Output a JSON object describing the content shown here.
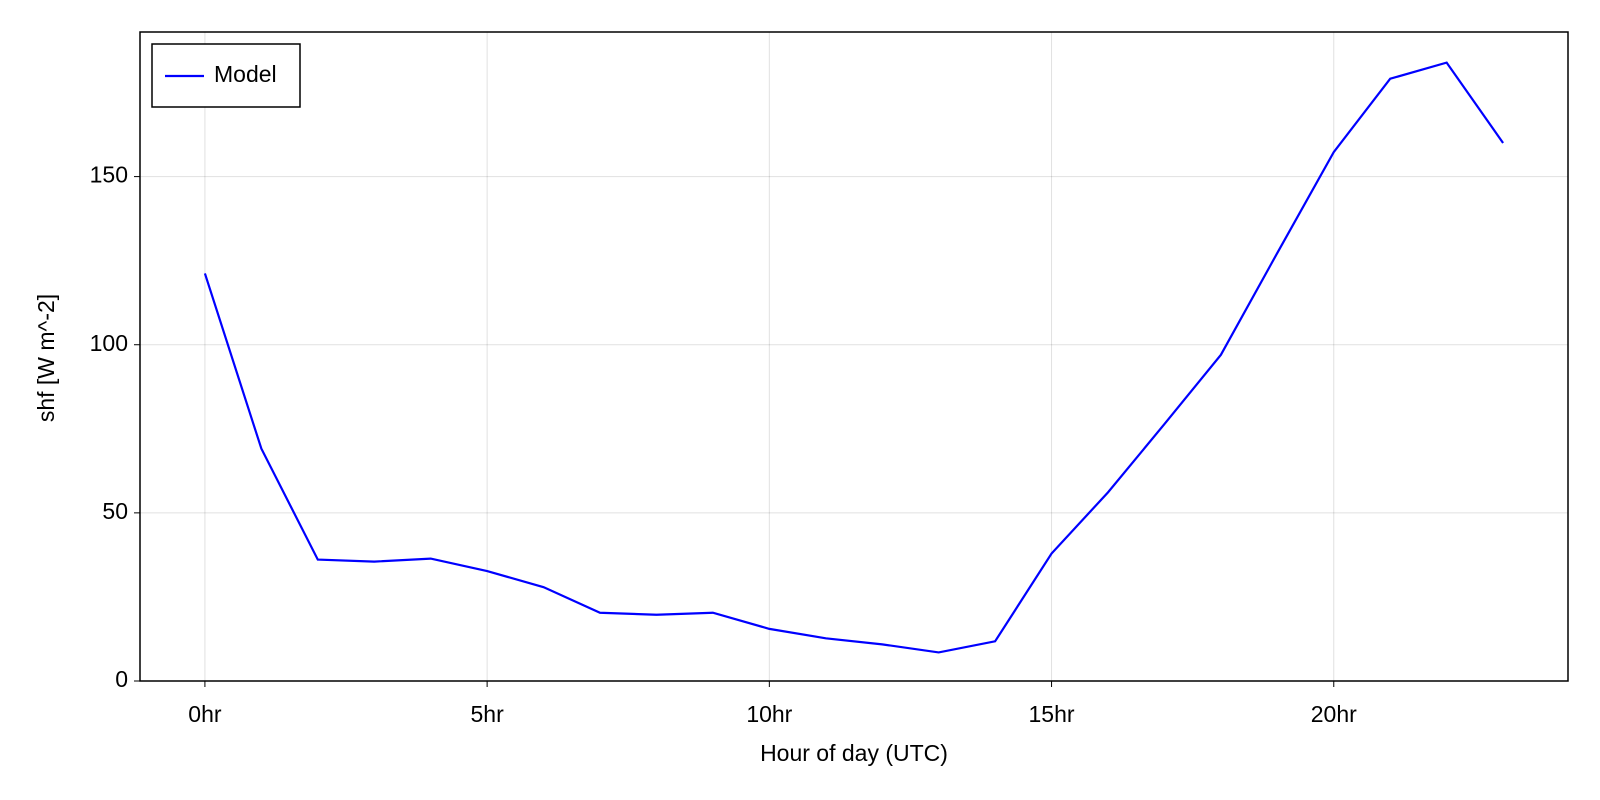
{
  "chart_data": {
    "type": "line",
    "xlabel": "Hour of day (UTC)",
    "ylabel": "shf [W m^-2]",
    "x": [
      0,
      1,
      2,
      3,
      4,
      5,
      6,
      7,
      8,
      9,
      10,
      11,
      12,
      13,
      14,
      15,
      16,
      17,
      18,
      19,
      20,
      21,
      22,
      23
    ],
    "series": [
      {
        "name": "Model",
        "color": "#0000ff",
        "values": [
          121.2,
          69.1,
          36.1,
          35.5,
          36.4,
          32.7,
          27.9,
          20.3,
          19.7,
          20.3,
          15.5,
          12.7,
          10.9,
          8.5,
          11.8,
          37.9,
          56.1,
          76.4,
          97.0,
          127.3,
          157.3,
          179.1,
          183.9,
          160.0
        ]
      }
    ],
    "xlim": [
      -1.15,
      24.15
    ],
    "ylim": [
      0,
      193
    ],
    "xticks": [
      {
        "value": 0,
        "label": "0hr"
      },
      {
        "value": 5,
        "label": "5hr"
      },
      {
        "value": 10,
        "label": "10hr"
      },
      {
        "value": 15,
        "label": "15hr"
      },
      {
        "value": 20,
        "label": "20hr"
      }
    ],
    "yticks": [
      0,
      50,
      100,
      150
    ],
    "grid": true,
    "legend": "upper-left"
  }
}
